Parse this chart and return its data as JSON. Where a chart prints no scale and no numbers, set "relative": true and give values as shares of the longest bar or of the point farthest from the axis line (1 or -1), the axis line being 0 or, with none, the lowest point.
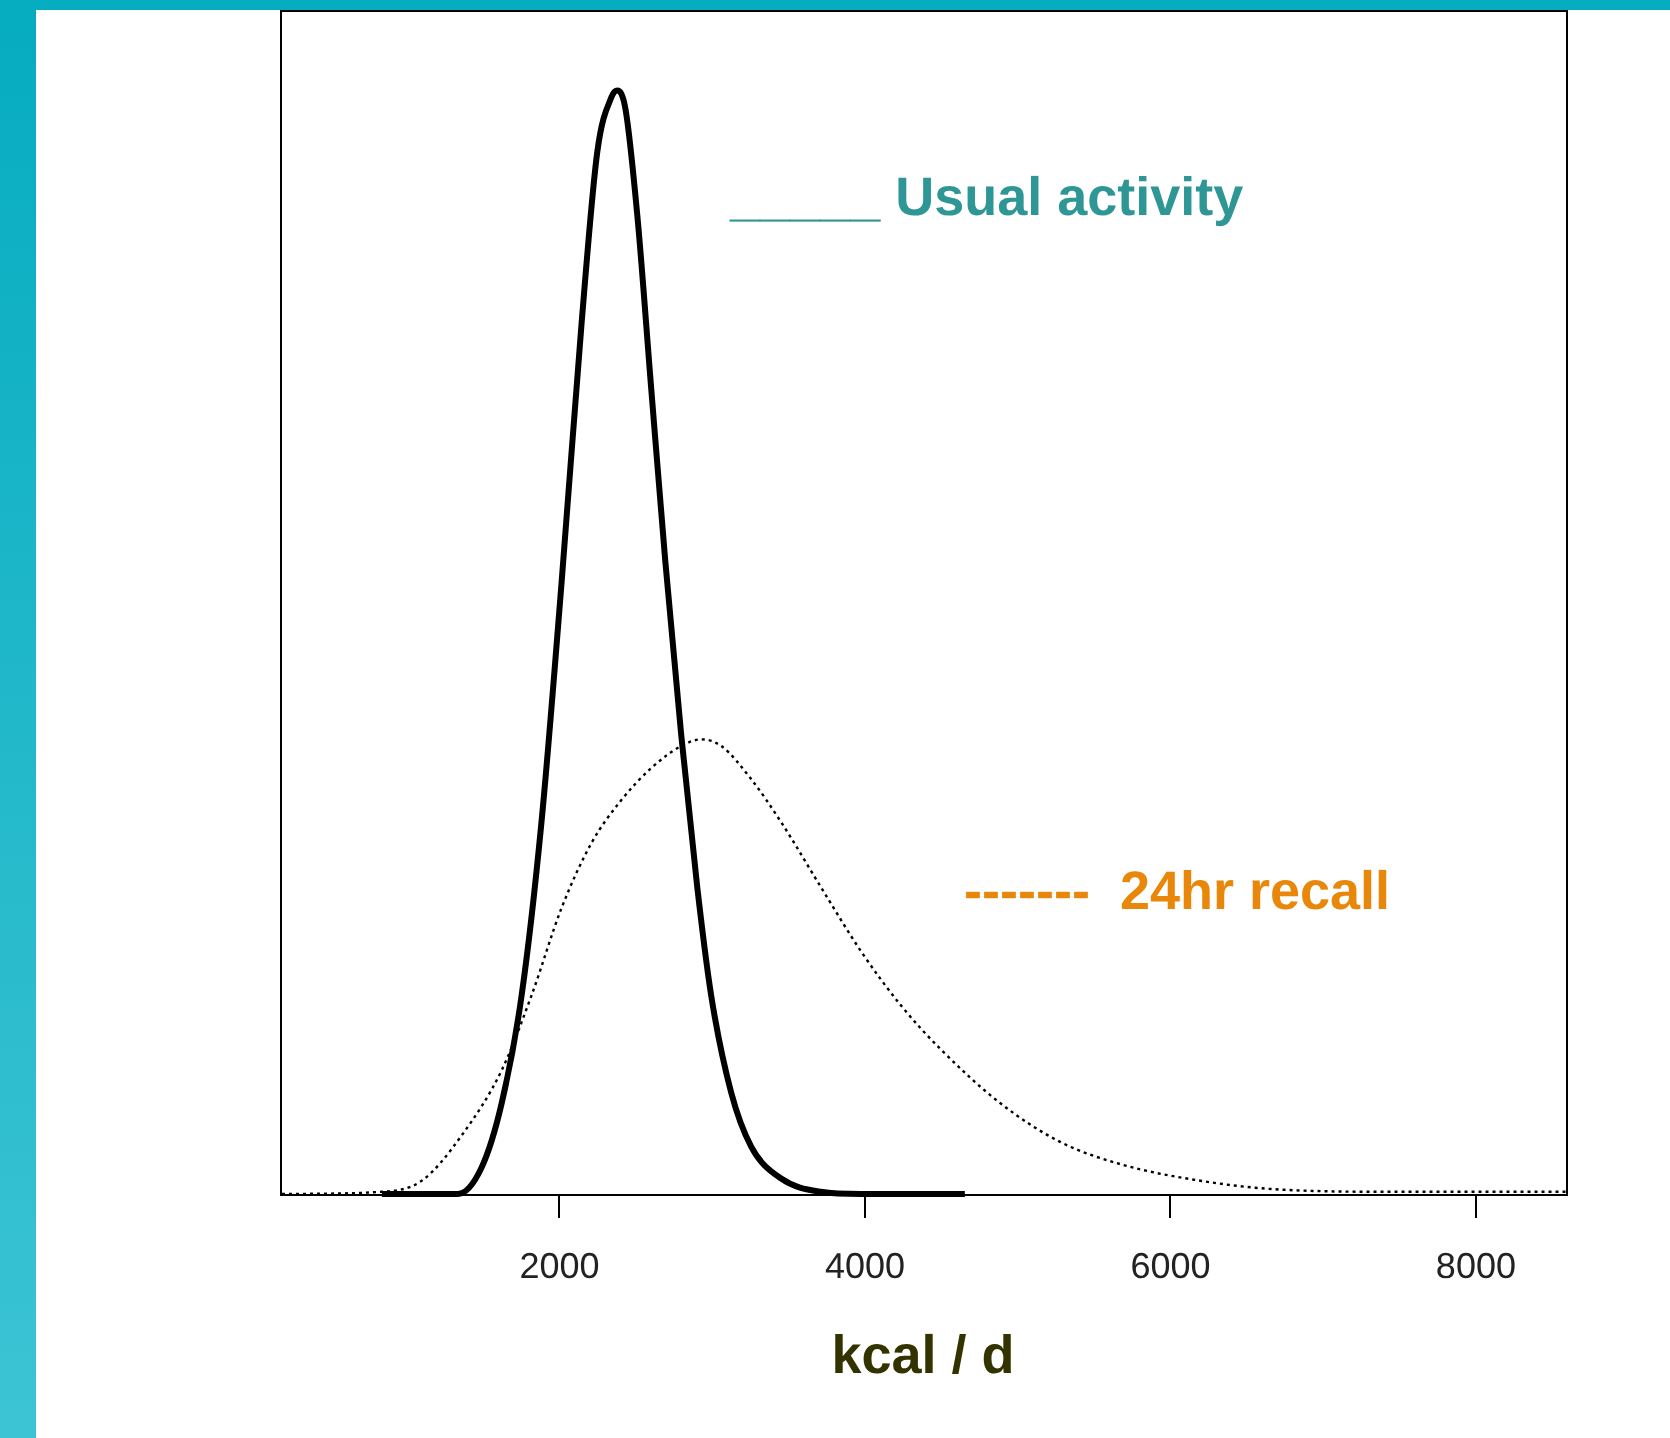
{
  "chart_data": {
    "type": "line",
    "xlabel": "kcal / d",
    "relative": true,
    "xlim": [
      170,
      8590
    ],
    "xticks": [
      2000,
      4000,
      6000,
      8000
    ],
    "grid": false,
    "legend": false,
    "marker": "none",
    "annotations": [
      "_____ Usual activity",
      "-------  24hr recall"
    ],
    "series": [
      {
        "color": "#000000",
        "line_style": "solid",
        "x": [
          837,
          1333,
          1490,
          1621,
          1752,
          1882,
          2013,
          2144,
          2248,
          2340,
          2379,
          2431,
          2510,
          2601,
          2693,
          2797,
          2902,
          2993,
          3124,
          3255,
          3451,
          3712,
          3974,
          4654
        ],
        "values": [
          0,
          0,
          0.024,
          0.082,
          0.18,
          0.337,
          0.553,
          0.788,
          0.945,
          0.994,
          1,
          0.984,
          0.886,
          0.729,
          0.573,
          0.416,
          0.278,
          0.18,
          0.092,
          0.043,
          0.014,
          0.002,
          0,
          0
        ]
      },
      {
        "color": "#000000",
        "line_style": "dotted",
        "x": [
          183,
          837,
          1098,
          1359,
          1621,
          1817,
          2013,
          2209,
          2405,
          2601,
          2797,
          2928,
          3059,
          3255,
          3451,
          3712,
          3974,
          4235,
          4497,
          4889,
          5281,
          5673,
          6196,
          6719,
          7503,
          8588
        ],
        "values": [
          0,
          0.002,
          0.012,
          0.053,
          0.112,
          0.18,
          0.259,
          0.318,
          0.357,
          0.386,
          0.406,
          0.412,
          0.406,
          0.376,
          0.337,
          0.278,
          0.22,
          0.171,
          0.131,
          0.082,
          0.047,
          0.027,
          0.012,
          0.004,
          0.002,
          0.002
        ]
      }
    ]
  }
}
